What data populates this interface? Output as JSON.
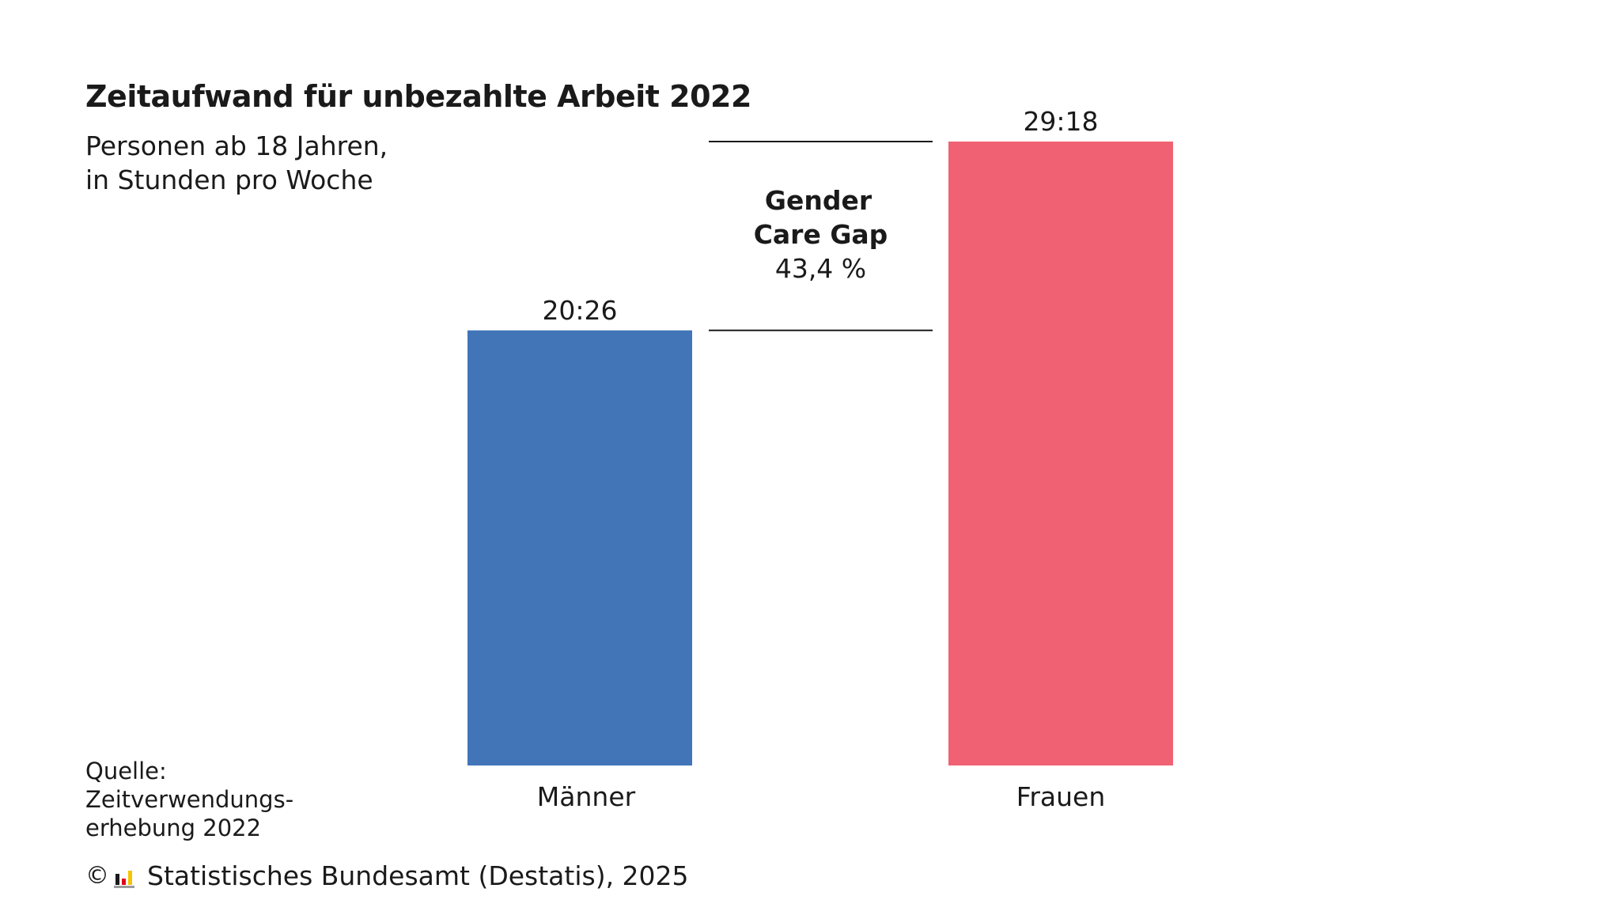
{
  "header": {
    "title": "Zeitaufwand für unbezahlte Arbeit 2022",
    "subtitle_lines": [
      "Personen ab 18 Jahren,",
      "in Stunden pro Woche"
    ]
  },
  "annotation": {
    "label_lines": [
      "Gender",
      "Care Gap"
    ],
    "value": "43,4 %"
  },
  "chart_data": {
    "type": "bar",
    "categories": [
      "Männer",
      "Frauen"
    ],
    "values": [
      20.433,
      29.3
    ],
    "value_labels": [
      "20:26",
      "29:18"
    ],
    "colors": [
      "#4175b8",
      "#f06273"
    ],
    "title": "Zeitaufwand für unbezahlte Arbeit 2022",
    "ylabel": "",
    "xlabel": "",
    "ylim": [
      0,
      29.3
    ],
    "grid": false,
    "legend": "none"
  },
  "footer": {
    "source_lines": [
      "Quelle:",
      "Zeitverwendungs-",
      "erhebung 2022"
    ],
    "copyright_symbol": "©",
    "logo_icon": "destatis-logo-icon",
    "copyright_text": "Statistisches Bundesamt (Destatis), 2025"
  }
}
